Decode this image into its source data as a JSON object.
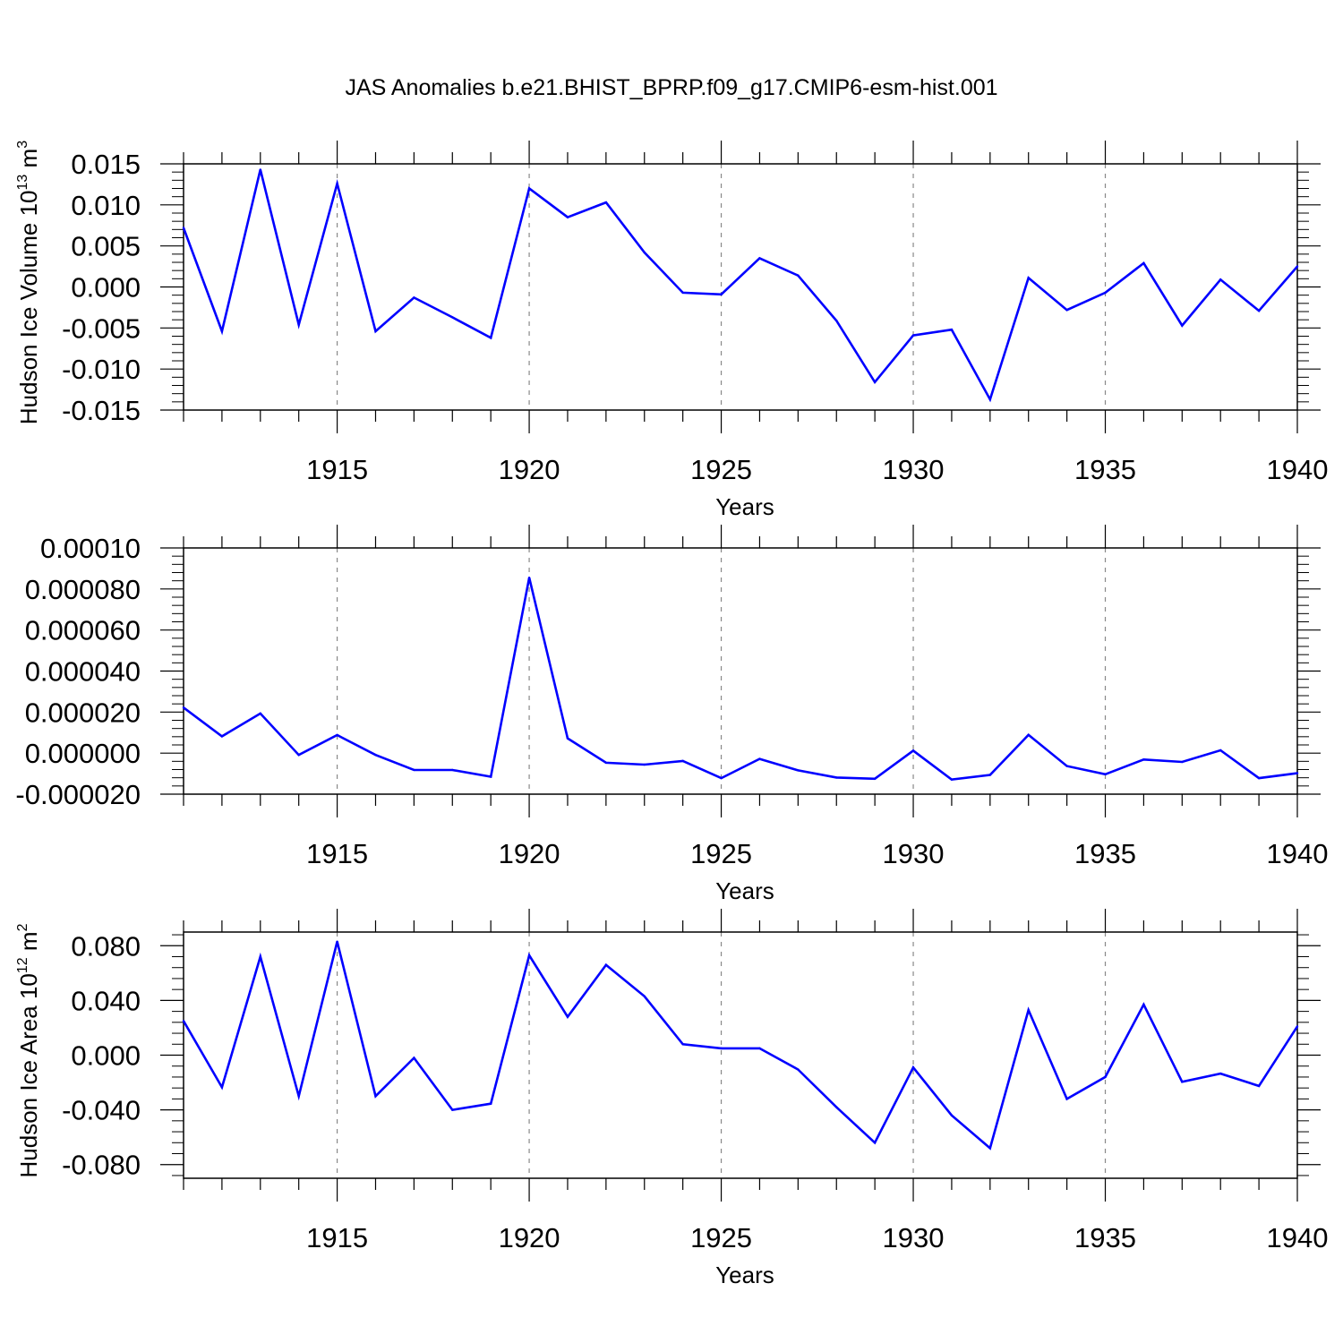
{
  "title": "JAS Anomalies b.e21.BHIST_BPRP.f09_g17.CMIP6-esm-hist.001",
  "colors": {
    "line": "#0000ff",
    "axis": "#000000",
    "grid": "#888888"
  },
  "chart_data": [
    {
      "type": "line",
      "ylabel_main": "Hudson Ice Volume 10",
      "ylabel_exp": "13",
      "ylabel_unit": "m",
      "ylabel_unit_exp": "3",
      "xlabel": "Years",
      "xlim": [
        1911,
        1940
      ],
      "ylim": [
        -0.015,
        0.015
      ],
      "yticks": [
        -0.015,
        -0.01,
        -0.005,
        0.0,
        0.005,
        0.01,
        0.015
      ],
      "ytick_labels": [
        "-0.015",
        "-0.010",
        "-0.005",
        "0.000",
        "0.005",
        "0.010",
        "0.015"
      ],
      "xticks": [
        1915,
        1920,
        1925,
        1930,
        1935,
        1940
      ],
      "xtick_labels": [
        "1915",
        "1920",
        "1925",
        "1930",
        "1935",
        "1940"
      ],
      "x": [
        1911,
        1912,
        1913,
        1914,
        1915,
        1916,
        1917,
        1918,
        1919,
        1920,
        1921,
        1922,
        1923,
        1924,
        1925,
        1926,
        1927,
        1928,
        1929,
        1930,
        1931,
        1932,
        1933,
        1934,
        1935,
        1936,
        1937,
        1938,
        1939,
        1940
      ],
      "values": [
        0.0072,
        -0.0054,
        0.0143,
        -0.0046,
        0.0126,
        -0.0054,
        -0.0013,
        -0.0037,
        -0.0062,
        0.012,
        0.0085,
        0.0103,
        0.0042,
        -0.0007,
        -0.0009,
        0.0035,
        0.0014,
        -0.0041,
        -0.0116,
        -0.0059,
        -0.0052,
        -0.0137,
        0.0011,
        -0.0028,
        -0.0007,
        0.0029,
        -0.0047,
        0.0009,
        -0.0029,
        0.0025
      ]
    },
    {
      "type": "line",
      "ylabel_main": "",
      "ylabel_exp": "",
      "ylabel_unit": "",
      "ylabel_unit_exp": "",
      "xlabel": "Years",
      "xlim": [
        1911,
        1940
      ],
      "ylim": [
        -2e-05,
        0.0001
      ],
      "yticks": [
        -2e-05,
        0.0,
        2e-05,
        4e-05,
        6e-05,
        8e-05,
        0.0001
      ],
      "ytick_labels": [
        "-0.000020",
        "0.000000",
        "0.000020",
        "0.000040",
        "0.000060",
        "0.000080",
        "0.00010"
      ],
      "xticks": [
        1915,
        1920,
        1925,
        1930,
        1935,
        1940
      ],
      "xtick_labels": [
        "1915",
        "1920",
        "1925",
        "1930",
        "1935",
        "1940"
      ],
      "x": [
        1911,
        1912,
        1913,
        1914,
        1915,
        1916,
        1917,
        1918,
        1919,
        1920,
        1921,
        1922,
        1923,
        1924,
        1925,
        1926,
        1927,
        1928,
        1929,
        1930,
        1931,
        1932,
        1933,
        1934,
        1935,
        1936,
        1937,
        1938,
        1939,
        1940
      ],
      "values": [
        2.22e-05,
        8.2e-06,
        1.93e-05,
        -9e-07,
        8.8e-06,
        -9e-07,
        -8.2e-06,
        -8.2e-06,
        -1.15e-05,
        8.55e-05,
        7.2e-06,
        -4.7e-06,
        -5.6e-06,
        -3.8e-06,
        -1.22e-05,
        -2.8e-06,
        -8.4e-06,
        -1.19e-05,
        -1.25e-05,
        1.2e-06,
        -1.29e-05,
        -1.06e-05,
        8.9e-06,
        -6.3e-06,
        -1.03e-05,
        -3.1e-06,
        -4.3e-06,
        1.4e-06,
        -1.22e-05,
        -9.8e-06
      ]
    },
    {
      "type": "line",
      "ylabel_main": "Hudson Ice Area 10",
      "ylabel_exp": "12",
      "ylabel_unit": "m",
      "ylabel_unit_exp": "2",
      "xlabel": "Years",
      "xlim": [
        1911,
        1940
      ],
      "ylim": [
        -0.09,
        0.09
      ],
      "yticks": [
        -0.08,
        -0.04,
        0.0,
        0.04,
        0.08
      ],
      "ytick_labels": [
        "-0.080",
        "-0.040",
        "0.000",
        "0.040",
        "0.080"
      ],
      "xticks": [
        1915,
        1920,
        1925,
        1930,
        1935,
        1940
      ],
      "xtick_labels": [
        "1915",
        "1920",
        "1925",
        "1930",
        "1935",
        "1940"
      ],
      "x": [
        1911,
        1912,
        1913,
        1914,
        1915,
        1916,
        1917,
        1918,
        1919,
        1920,
        1921,
        1922,
        1923,
        1924,
        1925,
        1926,
        1927,
        1928,
        1929,
        1930,
        1931,
        1932,
        1933,
        1934,
        1935,
        1936,
        1937,
        1938,
        1939,
        1940
      ],
      "values": [
        0.025,
        -0.0235,
        0.072,
        -0.03,
        0.083,
        -0.03,
        -0.002,
        -0.04,
        -0.0355,
        0.073,
        0.028,
        0.066,
        0.043,
        0.008,
        0.005,
        0.005,
        -0.0105,
        -0.038,
        -0.064,
        -0.009,
        -0.044,
        -0.068,
        0.033,
        -0.032,
        -0.016,
        0.037,
        -0.0195,
        -0.0135,
        -0.0225,
        0.021
      ]
    }
  ]
}
